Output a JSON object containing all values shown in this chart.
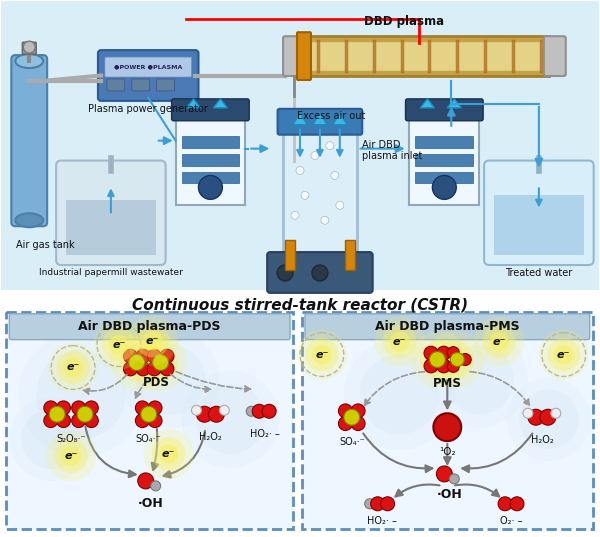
{
  "title": "Continuous stirred-tank reactor (CSTR)",
  "fig_width": 6.0,
  "fig_height": 5.37,
  "labels": {
    "air_gas_tank": "Air gas tank",
    "plasma_generator": "Plasma power generator",
    "dbd_plasma": "DBD plasma",
    "excess_air": "Excess air out",
    "air_dbd_inlet": "Air DBD\nplasma inlet",
    "industrial_water": "Industrial papermill wastewater",
    "treated_water": "Treated water",
    "left_panel_title": "Air DBD plasma-PDS",
    "right_panel_title": "Air DBD plasma-PMS",
    "pds_label": "PDS",
    "pms_label": "PMS",
    "s2o8": "S₂O₈·⁻",
    "so4_pds": "SO₄·⁻",
    "h2o2_pds": "H₂O₂",
    "ho2_pds": "HO₂· –",
    "oh_pds": "·OH",
    "so4_pms": "SO₄·⁻",
    "o2_sing": "¹O₂",
    "h2o2_pms": "H₂O₂",
    "oh_pms": "·OH",
    "ho2_pms": "HO₂· –",
    "o2_rad": "O₂· –"
  },
  "colors": {
    "arrow_blue": "#3a9fd5",
    "arrow_gray": "#777777",
    "panel_border": "#5a8ec0",
    "panel_title_bg": "#b8cfe0",
    "top_section_bg": "#daeef8",
    "molecule_red": "#dd1111",
    "molecule_yellow": "#cccc00",
    "molecule_gray": "#aaaaaa",
    "text_dark": "#111111"
  }
}
